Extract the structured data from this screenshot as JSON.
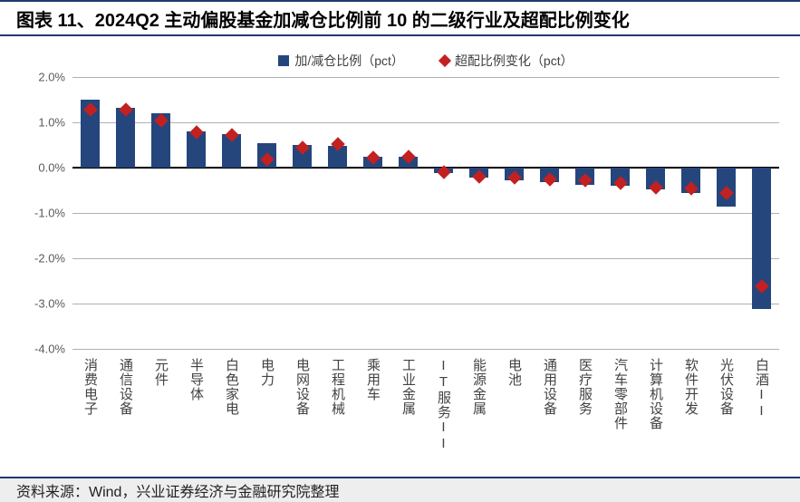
{
  "title": "图表 11、2024Q2 主动偏股基金加减仓比例前 10 的二级行业及超配比例变化",
  "source": "资料来源：Wind，兴业证券经济与金融研究院整理",
  "legend": {
    "bar": "加/减仓比例（pct）",
    "marker": "超配比例变化（pct）"
  },
  "chart": {
    "type": "bar+scatter",
    "ylim": [
      -4.0,
      2.0
    ],
    "yticks": [
      -4.0,
      -3.0,
      -2.0,
      -1.0,
      0.0,
      1.0,
      2.0
    ],
    "ytick_labels": [
      "-4.0%",
      "-3.0%",
      "-2.0%",
      "-1.0%",
      "0.0%",
      "1.0%",
      "2.0%"
    ],
    "grid_color": "#b0b0b0",
    "bar_color": "#24467c",
    "marker_color": "#c32022",
    "background_color": "#ffffff",
    "bar_width": 0.55,
    "categories": [
      "消费电子",
      "通信设备",
      "元件",
      "半导体",
      "白色家电",
      "电力",
      "电网设备",
      "工程机械",
      "乘用车",
      "工业金属",
      "IT服务II",
      "能源金属",
      "电池",
      "通用设备",
      "医疗服务",
      "汽车零部件",
      "计算机设备",
      "软件开发",
      "光伏设备",
      "白酒II"
    ],
    "bar_values": [
      1.51,
      1.32,
      1.2,
      0.8,
      0.75,
      0.55,
      0.5,
      0.48,
      0.25,
      0.25,
      -0.12,
      -0.22,
      -0.28,
      -0.32,
      -0.37,
      -0.4,
      -0.47,
      -0.55,
      -0.85,
      -3.12
    ],
    "marker_values": [
      1.28,
      1.28,
      1.05,
      0.78,
      0.72,
      0.18,
      0.45,
      0.52,
      0.22,
      0.25,
      -0.1,
      -0.2,
      -0.22,
      -0.25,
      -0.28,
      -0.33,
      -0.43,
      -0.45,
      -0.55,
      -2.62
    ]
  },
  "fonts": {
    "title_size": 20,
    "axis_label_size": 13,
    "x_label_size": 15,
    "legend_size": 14
  }
}
